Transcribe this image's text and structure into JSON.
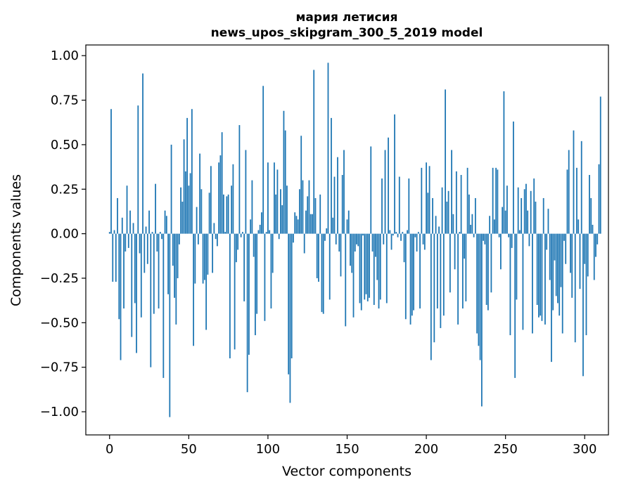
{
  "chart_data": {
    "type": "bar",
    "title": "мария летисия",
    "subtitle": "news_upos_skipgram_300_5_2019 model",
    "xlabel": "Vector components",
    "ylabel": "Components values",
    "xlim": [
      -15,
      315
    ],
    "ylim": [
      -1.13,
      1.06
    ],
    "xticks": [
      0,
      50,
      100,
      150,
      200,
      250,
      300
    ],
    "yticks": [
      1.0,
      0.75,
      0.5,
      0.25,
      0.0,
      -0.25,
      -0.5,
      -0.75,
      -1.0
    ],
    "ytick_labels": [
      "1.00",
      "0.75",
      "0.50",
      "0.25",
      "0.00",
      "−0.25",
      "−0.50",
      "−0.75",
      "−1.00"
    ],
    "grid": false,
    "bar_color": "#1f77b4",
    "values": [
      0.01,
      0.7,
      -0.27,
      0.02,
      -0.27,
      0.2,
      -0.48,
      -0.71,
      0.09,
      -0.42,
      -0.1,
      0.27,
      -0.08,
      0.13,
      -0.58,
      0.06,
      -0.39,
      -0.67,
      0.72,
      -0.11,
      -0.47,
      0.9,
      -0.22,
      0.04,
      -0.17,
      0.13,
      -0.75,
      0.01,
      -0.45,
      0.28,
      -0.1,
      -0.42,
      0.01,
      -0.03,
      -0.81,
      0.13,
      0.1,
      -0.34,
      -1.03,
      0.5,
      -0.18,
      -0.36,
      -0.51,
      -0.25,
      -0.06,
      0.26,
      0.18,
      0.53,
      0.35,
      0.65,
      0.27,
      0.34,
      0.7,
      -0.63,
      -0.28,
      0.15,
      -0.06,
      0.45,
      0.25,
      -0.28,
      -0.26,
      -0.54,
      -0.23,
      0.23,
      0.38,
      -0.22,
      0.06,
      -0.03,
      -0.07,
      0.4,
      0.44,
      0.57,
      0.22,
      0.01,
      0.21,
      0.22,
      -0.7,
      0.27,
      0.39,
      -0.65,
      -0.16,
      -0.09,
      0.61,
      -0.02,
      0.01,
      -0.38,
      0.47,
      -0.89,
      -0.68,
      0.08,
      0.3,
      -0.13,
      -0.57,
      -0.45,
      0.02,
      0.05,
      0.12,
      0.83,
      -0.49,
      0.01,
      0.4,
      0.02,
      -0.42,
      -0.22,
      0.4,
      0.22,
      0.36,
      -0.03,
      0.25,
      0.16,
      0.69,
      0.58,
      0.27,
      -0.79,
      -0.95,
      -0.7,
      -0.05,
      0.12,
      0.1,
      0.08,
      0.25,
      0.55,
      0.3,
      -0.11,
      0.13,
      0.21,
      0.3,
      0.11,
      0.11,
      0.92,
      0.2,
      -0.25,
      -0.27,
      0.22,
      -0.44,
      -0.45,
      -0.04,
      0.03,
      0.96,
      -0.37,
      0.65,
      0.09,
      0.32,
      -0.06,
      0.43,
      -0.1,
      -0.24,
      0.33,
      0.47,
      -0.52,
      0.08,
      0.13,
      -0.18,
      -0.22,
      -0.47,
      -0.1,
      -0.06,
      -0.07,
      -0.39,
      -0.43,
      -0.01,
      -0.37,
      -0.34,
      -0.38,
      -0.36,
      0.49,
      -0.1,
      -0.4,
      -0.13,
      -0.26,
      -0.42,
      -0.37,
      0.31,
      -0.06,
      0.47,
      -0.39,
      0.54,
      0.02,
      -0.09,
      -0.01,
      0.67,
      0.01,
      -0.02,
      0.32,
      -0.04,
      0.01,
      -0.16,
      -0.48,
      0.02,
      0.31,
      -0.51,
      -0.46,
      -0.43,
      -0.02,
      -0.1,
      0.01,
      -0.42,
      0.37,
      -0.06,
      -0.09,
      0.4,
      0.23,
      0.38,
      -0.71,
      0.2,
      -0.61,
      0.1,
      -0.42,
      0.04,
      -0.53,
      0.26,
      -0.46,
      0.81,
      0.18,
      0.24,
      -0.33,
      0.47,
      0.11,
      -0.2,
      0.35,
      -0.51,
      0.01,
      0.33,
      -0.42,
      -0.14,
      -0.38,
      0.37,
      0.22,
      0.05,
      0.11,
      -0.02,
      0.2,
      -0.56,
      -0.63,
      -0.71,
      -0.97,
      -0.04,
      -0.06,
      -0.4,
      -0.43,
      0.1,
      -0.33,
      0.37,
      0.08,
      0.37,
      0.36,
      -0.02,
      -0.2,
      0.15,
      0.8,
      0.13,
      0.27,
      -0.02,
      -0.57,
      -0.08,
      0.63,
      -0.81,
      -0.37,
      0.26,
      0.02,
      0.2,
      -0.54,
      0.25,
      0.28,
      0.13,
      -0.07,
      0.24,
      -0.56,
      0.31,
      0.18,
      -0.4,
      -0.47,
      -0.46,
      -0.49,
      0.2,
      -0.51,
      -0.09,
      0.14,
      -0.26,
      -0.72,
      -0.43,
      -0.15,
      -0.35,
      -0.39,
      -0.46,
      -0.3,
      -0.56,
      -0.04,
      -0.17,
      0.36,
      0.47,
      -0.22,
      -0.36,
      0.58,
      -0.61,
      0.37,
      0.08,
      -0.31,
      0.52,
      -0.8,
      -0.17,
      -0.57,
      -0.24,
      0.33,
      0.2,
      0.05,
      -0.26,
      -0.13,
      -0.06,
      0.39,
      0.77
    ]
  }
}
